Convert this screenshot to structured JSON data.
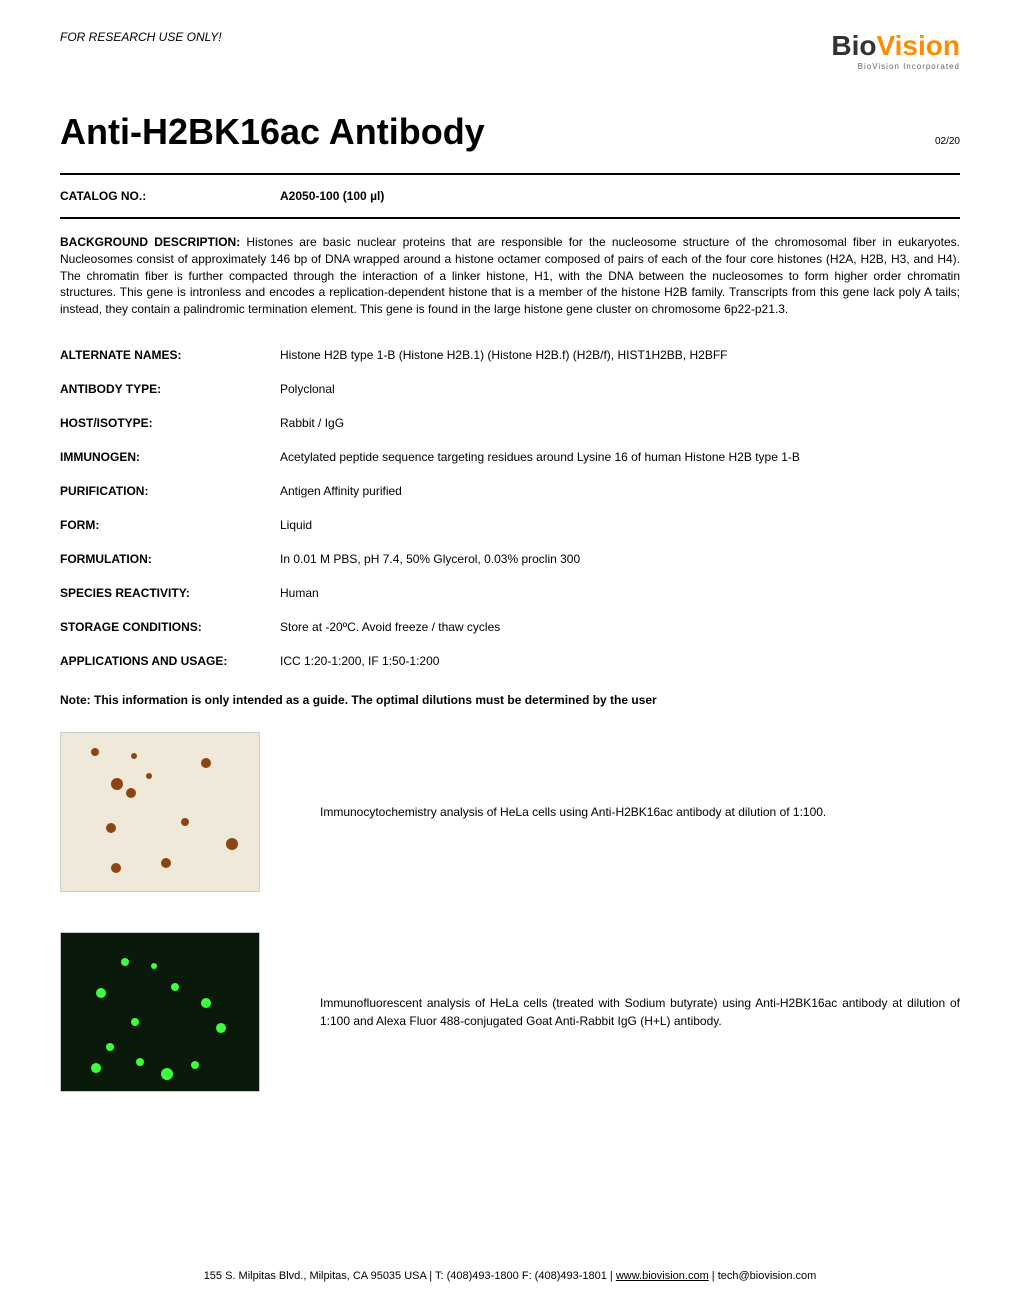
{
  "header": {
    "research_note": "FOR RESEARCH USE ONLY!",
    "logo_bio": "Bio",
    "logo_vision": "Vision",
    "logo_sub": "BioVision Incorporated"
  },
  "title": {
    "main": "Anti-H2BK16ac Antibody",
    "date": "02/20"
  },
  "catalog": {
    "label": "CATALOG NO.:",
    "value": "A2050-100 (100 µl)"
  },
  "background": {
    "label": "BACKGROUND DESCRIPTION: ",
    "text": "Histones are basic nuclear proteins that are responsible for the nucleosome structure of the chromosomal fiber in eukaryotes. Nucleosomes consist of approximately 146 bp of DNA wrapped around a histone octamer composed of pairs of each of the four core histones (H2A, H2B, H3, and H4). The chromatin fiber is further compacted through the interaction of a linker histone, H1, with the DNA between the nucleosomes to form higher order chromatin structures. This gene is intronless and encodes a replication-dependent histone that is a member of the histone H2B family. Transcripts from this gene lack poly A tails; instead, they contain a palindromic termination element. This gene is found in the large histone gene cluster on chromosome 6p22-p21.3."
  },
  "specs": [
    {
      "label": "ALTERNATE NAMES:",
      "value": "Histone H2B type 1-B (Histone H2B.1) (Histone H2B.f) (H2B/f), HIST1H2BB, H2BFF"
    },
    {
      "label": "ANTIBODY TYPE:",
      "value": "Polyclonal"
    },
    {
      "label": "HOST/ISOTYPE:",
      "value": "Rabbit / IgG"
    },
    {
      "label": "IMMUNOGEN:",
      "value": "Acetylated peptide sequence targeting residues around Lysine 16 of human Histone H2B type 1-B"
    },
    {
      "label": "PURIFICATION:",
      "value": "Antigen Affinity purified"
    },
    {
      "label": "FORM:",
      "value": "Liquid"
    },
    {
      "label": "FORMULATION:",
      "value": "In 0.01 M PBS, pH 7.4, 50% Glycerol, 0.03% proclin 300"
    },
    {
      "label": "SPECIES REACTIVITY:",
      "value": "Human"
    },
    {
      "label": "STORAGE CONDITIONS:",
      "value": "Store at -20ºC. Avoid freeze / thaw cycles"
    },
    {
      "label": "APPLICATIONS AND USAGE:",
      "value": "ICC 1:20-1:200, IF 1:50-1:200"
    }
  ],
  "note": "Note: This information is only intended as a guide. The optimal dilutions must be determined by the user",
  "images": [
    {
      "caption": "Immunocytochemistry analysis of HeLa cells using Anti-H2BK16ac antibody at dilution of 1:100.",
      "type": "icc",
      "bg_color": "#f0e8d8",
      "dot_color": "#8b4513"
    },
    {
      "caption": "Immunofluorescent analysis of HeLa cells (treated with Sodium butyrate) using Anti-H2BK16ac antibody at dilution of 1:100 and Alexa Fluor 488-conjugated Goat Anti-Rabbit IgG (H+L) antibody.",
      "type": "if",
      "bg_color": "#0a1a0a",
      "dot_color": "#3eff3e"
    }
  ],
  "footer": {
    "address": "155 S. Milpitas Blvd., Milpitas, CA 95035 USA | T: (408)493-1800 F: (408)493-1801 | ",
    "url": "www.biovision.com",
    "email": " | tech@biovision.com"
  },
  "colors": {
    "logo_orange": "#ff8c00",
    "text_black": "#000000",
    "bg_white": "#ffffff"
  }
}
